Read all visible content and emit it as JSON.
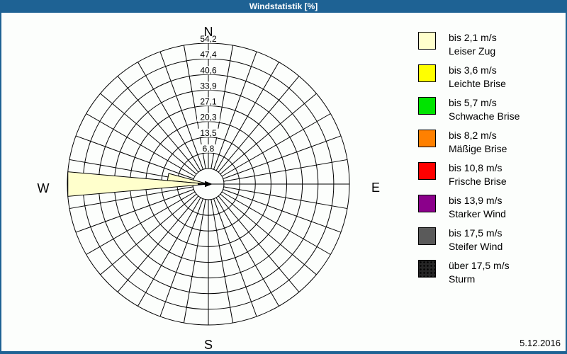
{
  "window": {
    "title": "Windstatistik [%]",
    "date": "5.12.2016",
    "colors": {
      "titlebar": "#1e6294",
      "border": "#1e6294",
      "background": "#fcfefc",
      "grid": "#000000"
    }
  },
  "chart_data": {
    "type": "wind-rose (polar bar)",
    "title": "Windstatistik [%]",
    "unit": "%",
    "compass_labels": [
      "N",
      "E",
      "S",
      "W"
    ],
    "sectors": 36,
    "sector_width_deg": 10,
    "ring_labels": [
      "6,8",
      "13,5",
      "20,3",
      "27,1",
      "33,9",
      "40,6",
      "47,4",
      "54,2"
    ],
    "ring_values": [
      6.8,
      13.5,
      20.3,
      27.1,
      33.9,
      40.6,
      47.4,
      54.2
    ],
    "radial_max": 54.2,
    "grid": "on",
    "legend_position": "right",
    "series": [
      {
        "direction": "W",
        "direction_deg": 270,
        "value": 54.2,
        "speed_class": "bis 2,1 m/s",
        "color": "#ffffcc"
      },
      {
        "direction": "WNW",
        "direction_deg": 280,
        "value": 11.0,
        "speed_class": "bis 2,1 m/s",
        "color": "#ffffcc"
      }
    ],
    "mean_direction_arrow_deg": 90
  },
  "legend": {
    "items": [
      {
        "color": "#ffffcc",
        "speed": "bis 2,1 m/s",
        "name": "Leiser Zug",
        "pattern": "solid"
      },
      {
        "color": "#ffff00",
        "speed": "bis 3,6 m/s",
        "name": "Leichte Brise",
        "pattern": "solid"
      },
      {
        "color": "#00e400",
        "speed": "bis 5,7 m/s",
        "name": "Schwache Brise",
        "pattern": "solid"
      },
      {
        "color": "#ff8000",
        "speed": "bis 8,2 m/s",
        "name": "Mäßige Brise",
        "pattern": "solid"
      },
      {
        "color": "#ff0000",
        "speed": "bis 10,8 m/s",
        "name": "Frische Brise",
        "pattern": "solid"
      },
      {
        "color": "#8b008b",
        "speed": "bis 13,9 m/s",
        "name": "Starker Wind",
        "pattern": "solid"
      },
      {
        "color": "#5a5a5a",
        "speed": "bis 17,5 m/s",
        "name": "Steifer Wind",
        "pattern": "solid"
      },
      {
        "color": "#262626",
        "speed": "über 17,5 m/s",
        "name": "Sturm",
        "pattern": "dots"
      }
    ]
  }
}
